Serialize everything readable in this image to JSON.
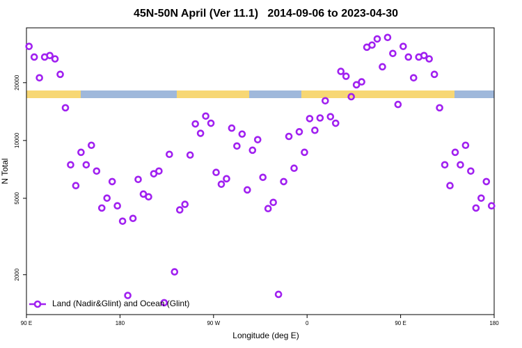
{
  "chart_data": {
    "type": "scatter",
    "title": "45N-50N April (Ver 11.1)   2014-09-06 to 2023-04-30",
    "x_label": "Longitude (deg E)",
    "y_label": "N Total",
    "y_log": true,
    "legend": "bottom-left",
    "xlim": [
      90,
      540
    ],
    "xticks": [
      {
        "value": 90,
        "label": "90 E"
      },
      180,
      {
        "value": 270,
        "label": "90 W"
      },
      {
        "value": 360,
        "label": "0"
      },
      {
        "value": 450,
        "label": "90 E"
      },
      {
        "value": 540,
        "label": "180"
      }
    ],
    "ylim": [
      1240,
      38600
    ],
    "yticks": [
      2000,
      5000,
      10000,
      20000
    ],
    "x": [
      92.5,
      97.5,
      102.5,
      107.5,
      112.5,
      117.5,
      122.5,
      127.5,
      132.5,
      137.5,
      142.5,
      147.5,
      152.5,
      157.5,
      162.5,
      167.5,
      172.5,
      177.5,
      182.5,
      187.5,
      192.5,
      197.5,
      202.5,
      207.5,
      212.5,
      217.5,
      222.5,
      227.5,
      232.5,
      237.5,
      242.5,
      247.5,
      252.5,
      257.5,
      262.5,
      267.5,
      272.5,
      277.5,
      282.5,
      287.5,
      292.5,
      297.5,
      302.5,
      307.5,
      312.5,
      317.5,
      322.5,
      327.5,
      332.5,
      337.5,
      342.5,
      347.5,
      352.5,
      357.5,
      362.5,
      367.5,
      372.5,
      377.5,
      382.5,
      387.5,
      392.5,
      397.5,
      402.5,
      407.5,
      412.5,
      417.5,
      422.5,
      427.5,
      432.5,
      437.5,
      442.5,
      447.5,
      452.5,
      457.5,
      462.5,
      467.5,
      472.5,
      477.5,
      482.5,
      487.5,
      492.5,
      497.5,
      502.5,
      507.5,
      512.5,
      517.5,
      522.5,
      527.5,
      532.5,
      537.5
    ],
    "series": [
      {
        "name": "Land (Nadir&Glint) and Ocean (Glint)",
        "color": "#a020f0",
        "values": [
          30900,
          27200,
          21200,
          27200,
          27700,
          26600,
          22100,
          14800,
          7470,
          5820,
          8680,
          7470,
          9440,
          6930,
          4450,
          5010,
          6110,
          4570,
          3800,
          1560,
          3930,
          6270,
          5260,
          5090,
          6710,
          6930,
          1430,
          8470,
          2070,
          4350,
          4650,
          8400,
          12200,
          10900,
          13400,
          12300,
          6820,
          5920,
          6320,
          11600,
          9360,
          10800,
          5530,
          8900,
          10100,
          6430,
          4420,
          4760,
          1580,
          6110,
          10500,
          7170,
          11100,
          8680,
          13000,
          11300,
          13100,
          16100,
          13300,
          12300,
          22900,
          21600,
          16900,
          19500,
          20200,
          30600,
          31400,
          33800,
          24200,
          34400,
          28400,
          15400,
          30900,
          27200,
          21200,
          27200,
          27700,
          26600,
          22100,
          14800,
          7470,
          5820,
          8680,
          7470,
          9440,
          6930,
          4450,
          5010,
          6110,
          4570
        ]
      }
    ]
  }
}
